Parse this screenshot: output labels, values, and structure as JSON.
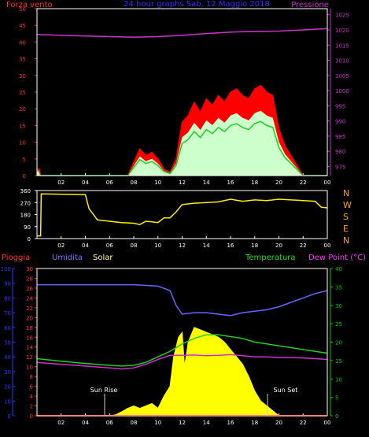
{
  "header": {
    "wind_speed_label": "Forza vento",
    "title": "24 hour graphs Sab, 12 Maggio 2018",
    "pressure_label": "Pressione"
  },
  "middle": {
    "compass": [
      "N",
      "W",
      "S",
      "E",
      "N"
    ]
  },
  "bottom": {
    "rain_label": "Pioggia",
    "humidity_label": "Umidita",
    "solar_label": "Solar",
    "temperature_label": "Temperatura",
    "dewpoint_label": "Dew Point (°C)",
    "sunrise_label": "Sun Rise",
    "sunset_label": "Sun Set"
  },
  "colors": {
    "background": "#000000",
    "frame": "#ffffff",
    "wind_gust": "#ff0000",
    "wind_avg": "#ffffff",
    "wind_speed_fill": "#ccffcc",
    "wind_speed_line": "#22cc22",
    "pressure": "#cc33cc",
    "wind_direction": "#ffee00",
    "rain": "#ff0000",
    "humidity": "#6666ff",
    "solar": "#ffff00",
    "temperature": "#22cc22",
    "dewpoint": "#cc33cc",
    "rain_axis": "#3333ff",
    "left_axis": "#ff3333",
    "right_axis": "#00cc00"
  },
  "chart_data": [
    {
      "id": "wind-pressure",
      "type": "line",
      "x_ticks": [
        "02",
        "04",
        "06",
        "08",
        "10",
        "12",
        "14",
        "16",
        "18",
        "20",
        "22",
        "00"
      ],
      "xlim": [
        0,
        24
      ],
      "ylim_left": [
        0,
        50
      ],
      "yticks_left": [
        0,
        5,
        10,
        15,
        20,
        25,
        30,
        35,
        40,
        45,
        50
      ],
      "ylim_right": [
        972,
        1027
      ],
      "yticks_right": [
        975,
        980,
        985,
        990,
        995,
        1000,
        1005,
        1010,
        1015,
        1020,
        1025
      ],
      "series": [
        {
          "name": "Forza vento",
          "axis": "left",
          "x": [
            0,
            0.2,
            0.3,
            7.5,
            8.0,
            8.5,
            9.0,
            9.5,
            10.0,
            10.5,
            11.0,
            11.5,
            12.0,
            12.5,
            13.0,
            13.5,
            14.0,
            14.5,
            15.0,
            15.5,
            16.0,
            16.5,
            17.0,
            17.5,
            18.0,
            18.5,
            19.0,
            19.5,
            20.0,
            20.5,
            21.0,
            21.5,
            22.0,
            24.0
          ],
          "y": [
            2,
            2,
            0,
            0,
            4,
            8,
            6,
            7,
            5,
            2,
            1,
            5,
            16,
            18,
            22,
            19,
            23,
            21,
            24,
            22,
            25,
            26,
            24,
            23,
            26,
            27,
            25,
            24,
            14,
            9,
            6,
            3,
            0,
            0
          ]
        },
        {
          "name": "Pressione",
          "axis": "right",
          "x": [
            0,
            2,
            4,
            6,
            8,
            10,
            12,
            14,
            16,
            18,
            20,
            22,
            24
          ],
          "y": [
            1018.5,
            1018.2,
            1018.0,
            1017.8,
            1017.6,
            1017.8,
            1018.2,
            1018.8,
            1019.3,
            1019.5,
            1019.6,
            1020.0,
            1020.4
          ]
        }
      ]
    },
    {
      "id": "wind-direction",
      "type": "line",
      "x_ticks": [
        "02",
        "04",
        "06",
        "08",
        "10",
        "12",
        "14",
        "16",
        "18",
        "20",
        "22",
        "00"
      ],
      "xlim": [
        0,
        24
      ],
      "ylim": [
        0,
        360
      ],
      "yticks": [
        0,
        90,
        180,
        270,
        360
      ],
      "series": [
        {
          "x": [
            0,
            0.3,
            0.35,
            4.0,
            4.3,
            5.0,
            6.0,
            7.0,
            8.0,
            8.5,
            9.0,
            9.5,
            10.0,
            10.5,
            11.0,
            11.5,
            12.0,
            13.0,
            14.0,
            15.0,
            16.0,
            17.0,
            18.0,
            19.0,
            20.0,
            21.0,
            22.0,
            23.0,
            23.5,
            24.0
          ],
          "y": [
            20,
            20,
            335,
            330,
            225,
            140,
            130,
            120,
            115,
            105,
            130,
            125,
            120,
            155,
            155,
            200,
            255,
            265,
            270,
            275,
            295,
            280,
            290,
            285,
            295,
            290,
            285,
            280,
            235,
            230
          ]
        }
      ]
    },
    {
      "id": "temperature-humidity-solar",
      "type": "line",
      "x_ticks": [
        "02",
        "04",
        "06",
        "08",
        "10",
        "12",
        "14",
        "16",
        "18",
        "20",
        "22",
        "00"
      ],
      "xlim": [
        0,
        24
      ],
      "ylim_humidity": [
        0,
        100
      ],
      "yticks_humidity": [
        0,
        10,
        20,
        30,
        40,
        50,
        60,
        70,
        80,
        90,
        100
      ],
      "ylim_solar": [
        0,
        30
      ],
      "yticks_solar": [
        0,
        2,
        4,
        6,
        8,
        10,
        12,
        14,
        16,
        18,
        20,
        22,
        24,
        26,
        28,
        30
      ],
      "ylim_temperature": [
        0,
        40
      ],
      "yticks_temperature": [
        0,
        5,
        10,
        15,
        20,
        25,
        30,
        35,
        40
      ],
      "series": [
        {
          "name": "Umidita",
          "axis": "humidity",
          "x": [
            0,
            2,
            4,
            6,
            8,
            10,
            11,
            11.5,
            12,
            13,
            14,
            15,
            16,
            17,
            18,
            19,
            20,
            21,
            22,
            23,
            24
          ],
          "y": [
            89,
            89,
            89,
            89,
            89,
            88,
            85,
            75,
            69,
            70,
            70,
            69,
            68,
            70,
            71,
            72,
            74,
            77,
            80,
            83,
            85
          ]
        },
        {
          "name": "Temperatura",
          "axis": "temperature",
          "x": [
            0,
            2,
            4,
            6,
            7,
            8,
            9,
            10,
            11,
            12,
            13,
            14,
            15,
            16,
            17,
            18,
            19,
            20,
            21,
            22,
            23,
            24
          ],
          "y": [
            15.5,
            14.8,
            14.2,
            13.7,
            13.5,
            13.7,
            14.5,
            16.0,
            17.5,
            19.5,
            21.0,
            22.0,
            22.0,
            21.5,
            21.0,
            20.0,
            19.5,
            19.0,
            18.5,
            18.0,
            17.5,
            17.0
          ]
        },
        {
          "name": "Dew Point (°C)",
          "axis": "temperature",
          "x": [
            0,
            2,
            4,
            6,
            7,
            8,
            9,
            10,
            11,
            12,
            13,
            14,
            15,
            16,
            17,
            18,
            19,
            20,
            21,
            22,
            23,
            24
          ],
          "y": [
            14.5,
            14.0,
            13.5,
            13.0,
            12.7,
            13.0,
            14.0,
            15.3,
            16.4,
            16.4,
            16.5,
            16.3,
            16.4,
            16.6,
            16.3,
            16.0,
            16.0,
            15.8,
            15.8,
            15.7,
            15.5,
            15.3
          ]
        },
        {
          "name": "Solar",
          "axis": "solar",
          "x": [
            0,
            6.0,
            6.5,
            7.0,
            7.5,
            8.0,
            8.5,
            9.0,
            9.5,
            10.0,
            10.5,
            11.0,
            11.3,
            11.7,
            12.0,
            12.2,
            12.5,
            13.0,
            13.5,
            14.0,
            14.5,
            15.0,
            15.5,
            16.0,
            16.5,
            17.0,
            17.5,
            18.0,
            18.5,
            19.0,
            19.5,
            20.0,
            24.0
          ],
          "y": [
            0,
            0,
            0.2,
            0.8,
            1.5,
            2.0,
            1.5,
            2.0,
            2.5,
            1.5,
            4.0,
            6.0,
            12.0,
            16.0,
            17.0,
            10.0,
            15.0,
            18.0,
            17.5,
            17.0,
            16.5,
            16.0,
            15.0,
            13.5,
            12.0,
            10.5,
            8.0,
            5.0,
            3.0,
            2.0,
            1.0,
            0,
            0
          ]
        },
        {
          "name": "Pioggia",
          "axis": "humidity",
          "x": [
            0,
            24
          ],
          "y": [
            0,
            0
          ]
        }
      ]
    }
  ]
}
